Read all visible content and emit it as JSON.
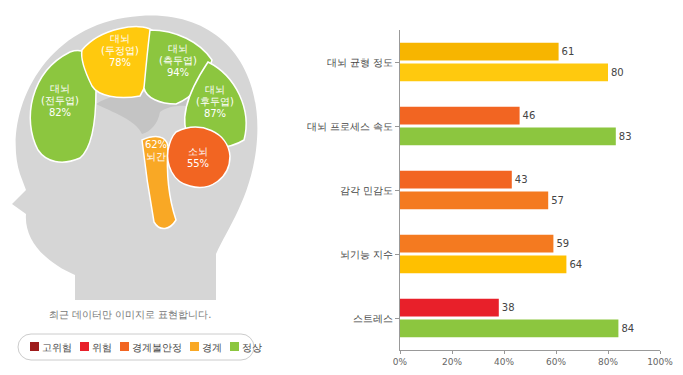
{
  "chart_data": {
    "type": "bar",
    "orientation": "horizontal",
    "categories": [
      "대뇌 균형 정도",
      "대뇌 프로세스 속도",
      "감각 민감도",
      "뇌기능 지수",
      "스트레스"
    ],
    "series": [
      {
        "values": [
          61,
          46,
          43,
          59,
          38
        ],
        "colors": [
          "#f7b500",
          "#f26522",
          "#f26522",
          "#f47a20",
          "#e8202a"
        ]
      },
      {
        "values": [
          80,
          83,
          57,
          64,
          84
        ],
        "colors": [
          "#ffc90e",
          "#8cc63f",
          "#f47a20",
          "#ffc000",
          "#8cc63f"
        ]
      }
    ],
    "xlim": [
      0,
      100
    ],
    "xticks": [
      {
        "value": 0,
        "label": "0%"
      },
      {
        "value": 20,
        "label": "20%"
      },
      {
        "value": 40,
        "label": "40%"
      },
      {
        "value": 60,
        "label": "60%"
      },
      {
        "value": 80,
        "label": "80%"
      },
      {
        "value": 100,
        "label": "100%"
      }
    ],
    "grid": false,
    "data_labels": true
  },
  "brain_diagram": {
    "regions": [
      {
        "lines": [
          "대뇌",
          "(전두엽)",
          "82%"
        ],
        "color": "#8cc63f"
      },
      {
        "lines": [
          "대뇌",
          "(두정엽)",
          "78%"
        ],
        "color": "#ffc90e"
      },
      {
        "lines": [
          "대뇌",
          "(측두엽)",
          "94%"
        ],
        "color": "#8cc63f"
      },
      {
        "lines": [
          "대뇌",
          "(후두엽)",
          "87%"
        ],
        "color": "#8cc63f"
      },
      {
        "lines": [
          "62%",
          "뇌간"
        ],
        "color": "#f9a825"
      },
      {
        "lines": [
          "소뇌",
          "55%"
        ],
        "color": "#f26522"
      }
    ],
    "caption": "최근 데이터만 이미지로 표현합니다.",
    "legend": [
      {
        "label": "고위험",
        "color": "#9e1b1b"
      },
      {
        "label": "위험",
        "color": "#e8202a"
      },
      {
        "label": "경계불안정",
        "color": "#f26522"
      },
      {
        "label": "경계",
        "color": "#f9a825"
      },
      {
        "label": "정상",
        "color": "#8cc63f"
      }
    ]
  }
}
